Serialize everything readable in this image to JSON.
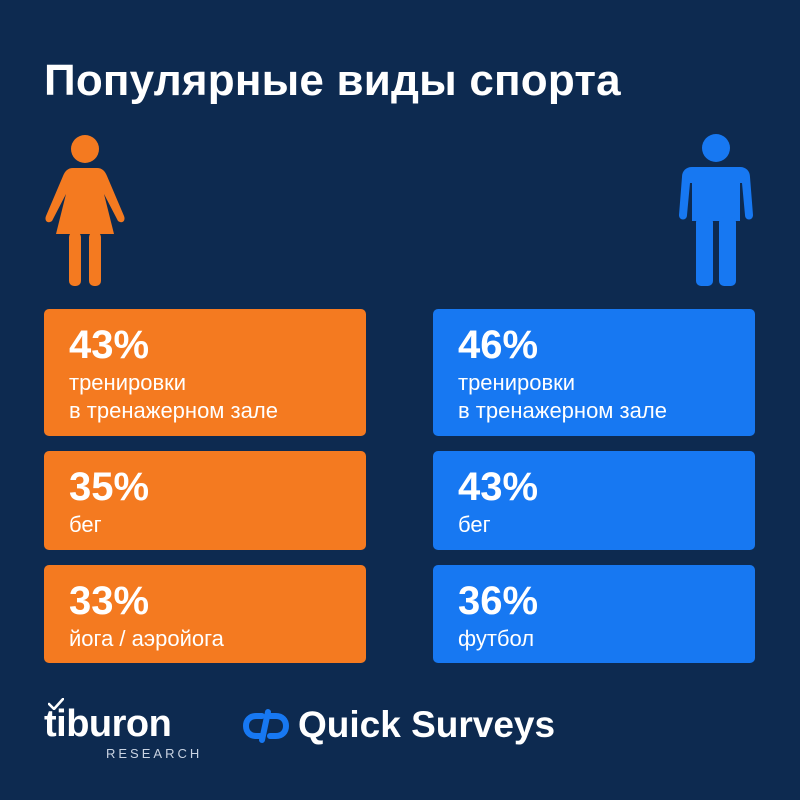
{
  "title": "Популярные виды спорта",
  "colors": {
    "background": "#0d2a50",
    "female_accent": "#f47a20",
    "male_accent": "#1778f2"
  },
  "icons": {
    "female": "woman-figure-icon",
    "male": "man-figure-icon"
  },
  "female": {
    "items": [
      {
        "percent": "43%",
        "label_line1": "тренировки",
        "label_line2": "в тренажерном зале"
      },
      {
        "percent": "35%",
        "label_line1": "бег"
      },
      {
        "percent": "33%",
        "label_line1": "йога / аэройога"
      }
    ]
  },
  "male": {
    "items": [
      {
        "percent": "46%",
        "label_line1": "тренировки",
        "label_line2": "в тренажерном зале"
      },
      {
        "percent": "43%",
        "label_line1": "бег"
      },
      {
        "percent": "36%",
        "label_line1": "футбол"
      }
    ]
  },
  "footer": {
    "tiburon_name": "tiburon",
    "tiburon_sub": "RESEARCH",
    "quick_surveys": "Quick Surveys"
  }
}
